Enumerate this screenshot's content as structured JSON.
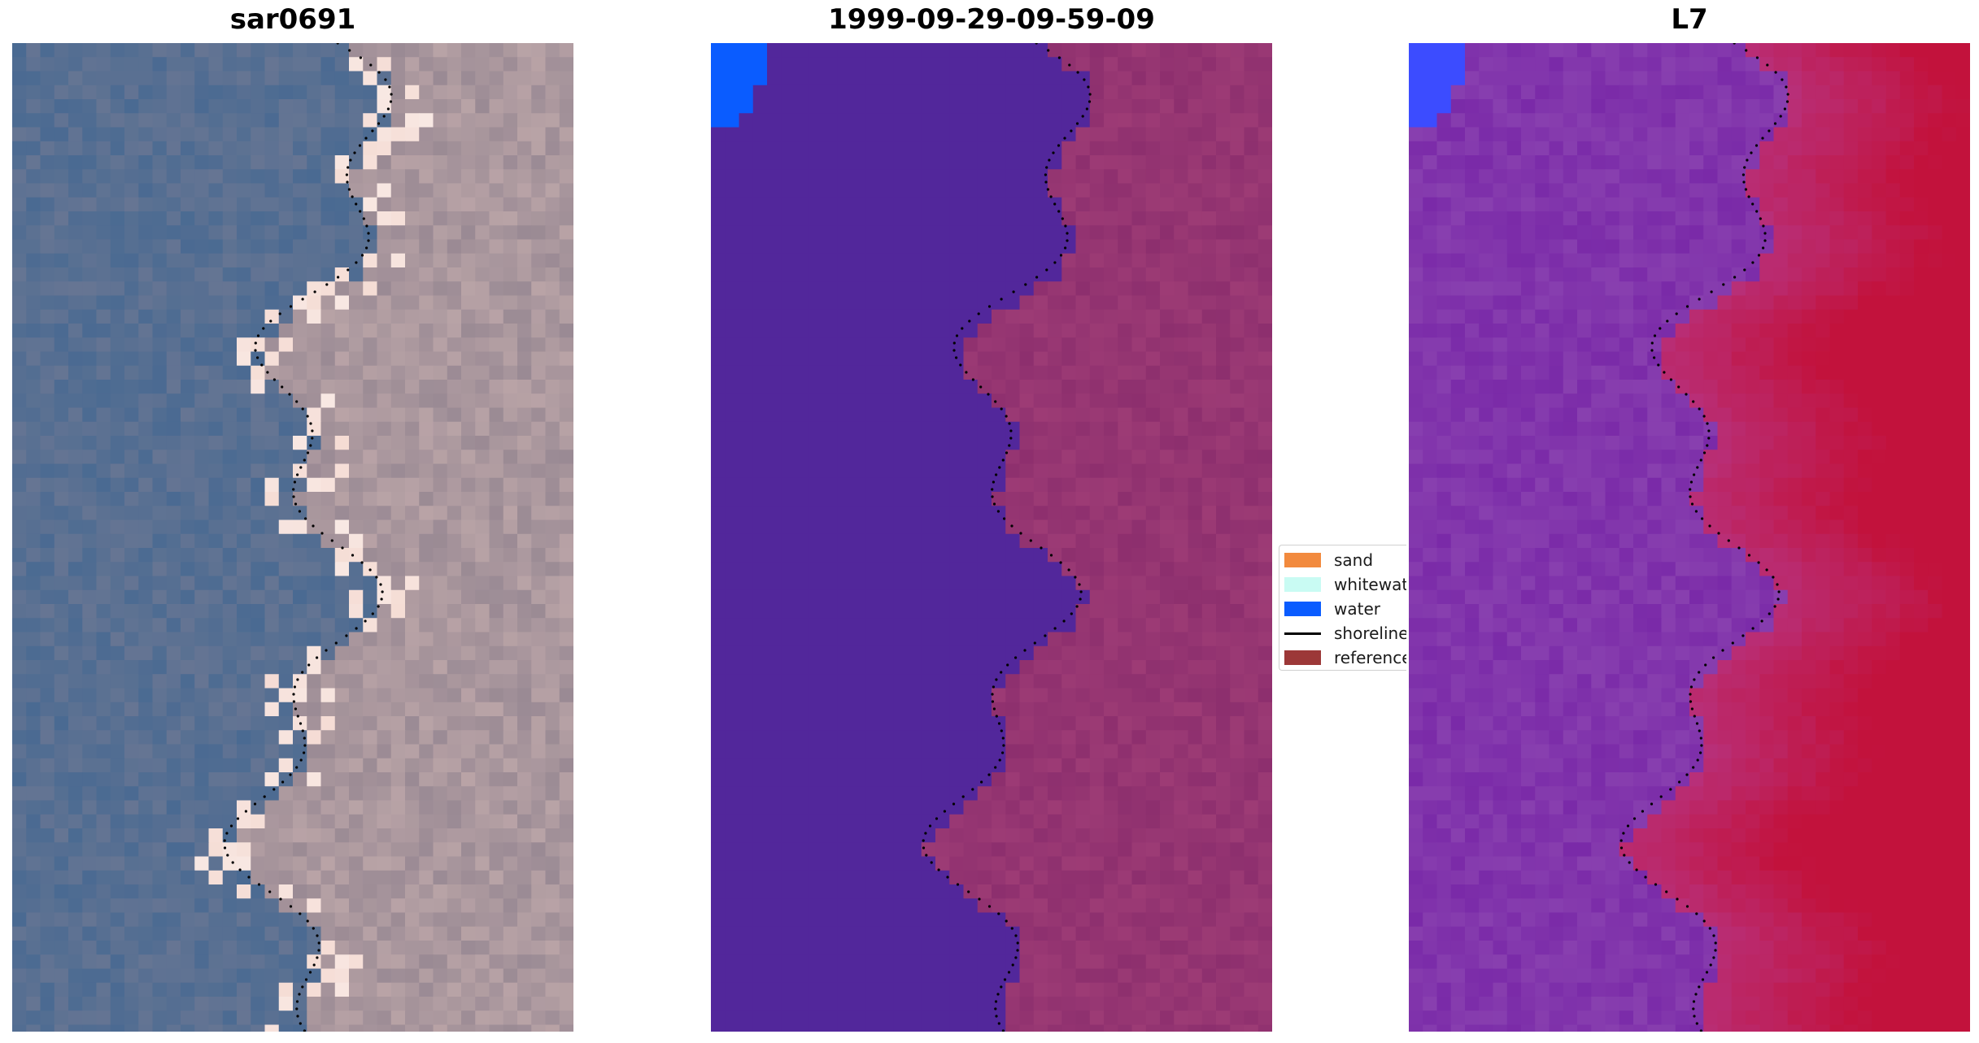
{
  "panels": [
    {
      "title": "sar0691",
      "kind": "rgb"
    },
    {
      "title": "1999-09-29-09-59-09",
      "kind": "classified"
    },
    {
      "title": "L7",
      "kind": "mndwi"
    }
  ],
  "legend": {
    "items": [
      {
        "label": "sand",
        "color": "#f28a3e",
        "type": "patch"
      },
      {
        "label": "whitewater",
        "color": "#c9fbf3",
        "type": "patch"
      },
      {
        "label": "water",
        "color": "#0a5cff",
        "type": "patch"
      },
      {
        "label": "shoreline",
        "color": "#000000",
        "type": "line"
      },
      {
        "label": "reference",
        "color": "#9c3838",
        "type": "patch"
      }
    ]
  },
  "colors": {
    "rgb_water": "#4a6a92",
    "rgb_land": "#9a8a94",
    "rgb_sand": "#f2d2c8",
    "class_water": "#52279b",
    "class_land": "#8d2f6e",
    "class_blue": "#0a5cff",
    "index_purple": "#7a2aa8",
    "index_red": "#c2123c",
    "index_blue": "#3c4cff"
  }
}
